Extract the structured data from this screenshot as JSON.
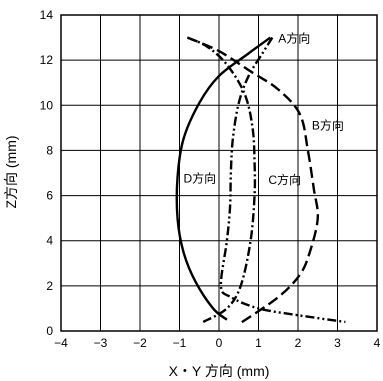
{
  "chart_data": {
    "type": "line",
    "xlabel": "X・Y 方向 (mm)",
    "ylabel": "Z方向 (mm)",
    "xlim": [
      -4,
      4
    ],
    "ylim": [
      0,
      14
    ],
    "x_ticks": [
      "−4",
      "−3",
      "−2",
      "−1",
      "0",
      "1",
      "2",
      "3",
      "4"
    ],
    "y_ticks": [
      "0",
      "2",
      "4",
      "6",
      "8",
      "10",
      "12",
      "14"
    ],
    "grid": true,
    "series": [
      {
        "name": "A方向",
        "dash": "dash-dot-dot",
        "points": [
          [
            1.35,
            13.0
          ],
          [
            1.1,
            12.3
          ],
          [
            0.75,
            11.3
          ],
          [
            0.5,
            10.1
          ],
          [
            0.35,
            8.5
          ],
          [
            0.3,
            7.0
          ],
          [
            0.28,
            5.5
          ],
          [
            0.2,
            4.0
          ],
          [
            0.05,
            2.0
          ],
          [
            0.3,
            1.5
          ],
          [
            1.0,
            1.0
          ],
          [
            2.0,
            0.7
          ],
          [
            3.2,
            0.4
          ]
        ]
      },
      {
        "name": "B方向",
        "dash": "long-dash",
        "points": [
          [
            -0.8,
            13.0
          ],
          [
            0.0,
            12.4
          ],
          [
            0.8,
            11.5
          ],
          [
            1.5,
            10.7
          ],
          [
            2.05,
            9.6
          ],
          [
            2.25,
            8.0
          ],
          [
            2.4,
            6.3
          ],
          [
            2.5,
            5.0
          ],
          [
            2.3,
            3.5
          ],
          [
            2.05,
            2.5
          ],
          [
            1.5,
            1.5
          ],
          [
            0.5,
            0.3
          ]
        ]
      },
      {
        "name": "C方向",
        "dash": "dash-dot",
        "points": [
          [
            -0.4,
            0.4
          ],
          [
            0.2,
            1.0
          ],
          [
            0.55,
            2.0
          ],
          [
            0.8,
            4.0
          ],
          [
            0.9,
            6.0
          ],
          [
            0.9,
            7.5
          ],
          [
            0.85,
            9.0
          ],
          [
            0.65,
            10.5
          ],
          [
            0.2,
            11.8
          ],
          [
            -0.3,
            12.6
          ],
          [
            -0.8,
            13.0
          ]
        ]
      },
      {
        "name": "D方向",
        "dash": "solid",
        "points": [
          [
            1.3,
            13.0
          ],
          [
            0.75,
            12.3
          ],
          [
            0.0,
            11.3
          ],
          [
            -0.5,
            10.1
          ],
          [
            -0.9,
            8.5
          ],
          [
            -1.05,
            6.8
          ],
          [
            -1.05,
            5.0
          ],
          [
            -0.9,
            3.5
          ],
          [
            -0.6,
            2.2
          ],
          [
            -0.15,
            1.0
          ],
          [
            0.2,
            0.5
          ]
        ]
      }
    ],
    "annotations": [
      {
        "text": "A方向",
        "x": 1.5,
        "y": 12.95
      },
      {
        "text": "B方向",
        "x": 2.35,
        "y": 9.1
      },
      {
        "text": "C方向",
        "x": 1.25,
        "y": 6.7
      },
      {
        "text": "D方向",
        "x": -0.9,
        "y": 6.75
      }
    ]
  }
}
